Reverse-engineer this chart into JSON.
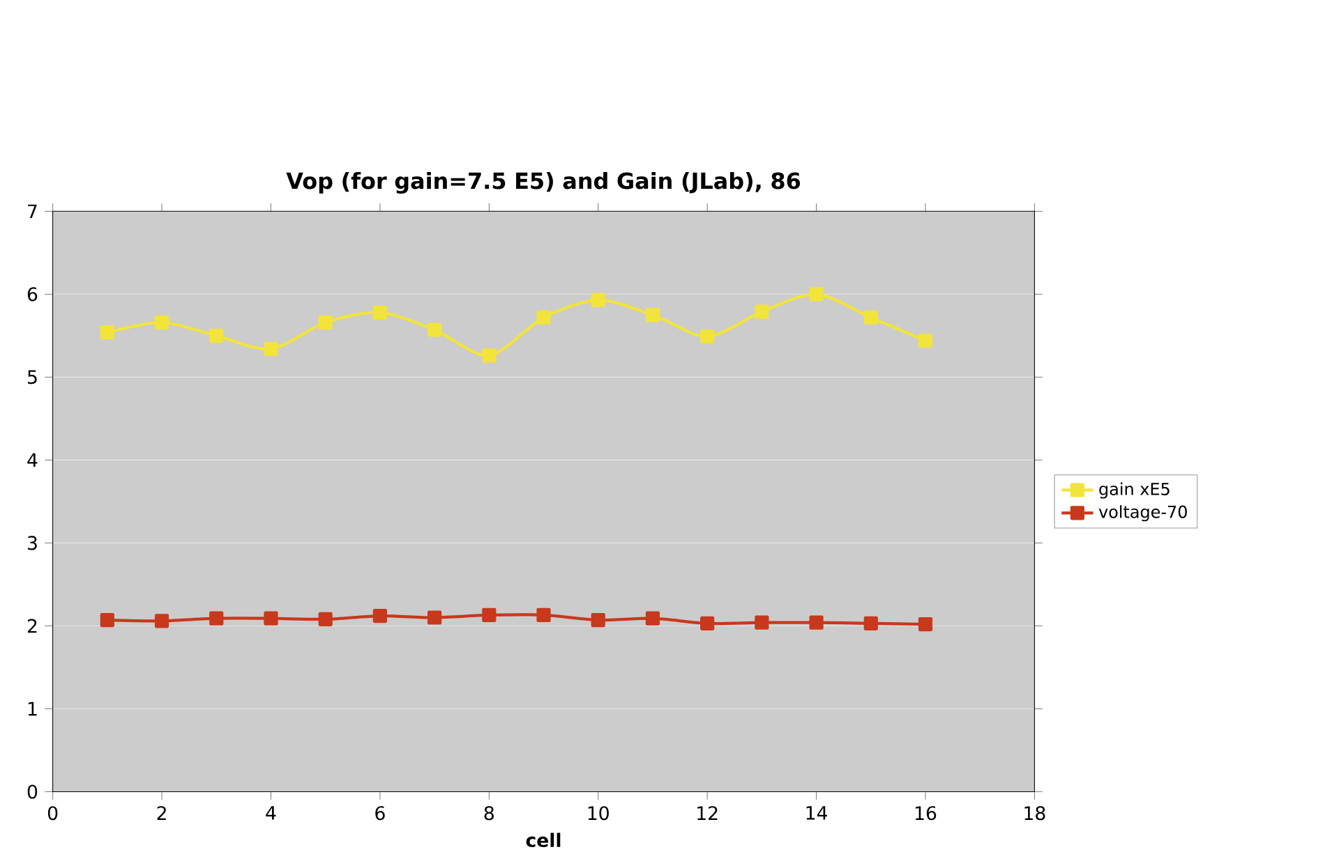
{
  "chart_data": {
    "type": "line",
    "title": "Vop (for gain=7.5 E5) and Gain (JLab), 86",
    "xlabel": "cell",
    "x": [
      1,
      2,
      3,
      4,
      5,
      6,
      7,
      8,
      9,
      10,
      11,
      12,
      13,
      14,
      15,
      16
    ],
    "series": [
      {
        "name": "gain xE5",
        "color": "#f2e43a",
        "values": [
          5.54,
          5.66,
          5.5,
          5.34,
          5.66,
          5.78,
          5.57,
          5.26,
          5.72,
          5.93,
          5.75,
          5.49,
          5.79,
          6.0,
          5.72,
          5.44
        ]
      },
      {
        "name": "voltage-70",
        "color": "#c8381c",
        "values": [
          2.07,
          2.06,
          2.09,
          2.09,
          2.08,
          2.12,
          2.1,
          2.13,
          2.13,
          2.07,
          2.09,
          2.03,
          2.04,
          2.04,
          2.03,
          2.02
        ]
      }
    ],
    "xlim": [
      0,
      18
    ],
    "xticks": [
      0,
      2,
      4,
      6,
      8,
      10,
      12,
      14,
      16,
      18
    ],
    "ylim": [
      0,
      7
    ],
    "yticks": [
      0,
      1,
      2,
      3,
      4,
      5,
      6,
      7
    ],
    "grid": "y",
    "legend": "right",
    "marker": "square",
    "line_style": "solid"
  }
}
